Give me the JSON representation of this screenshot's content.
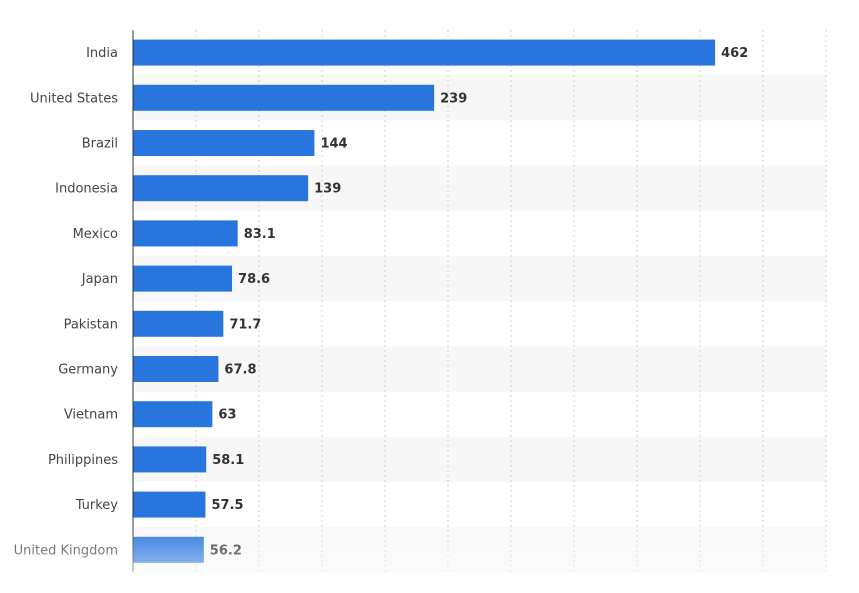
{
  "chart_data": {
    "type": "bar",
    "orientation": "horizontal",
    "categories": [
      "India",
      "United States",
      "Brazil",
      "Indonesia",
      "Mexico",
      "Japan",
      "Pakistan",
      "Germany",
      "Vietnam",
      "Philippines",
      "Turkey",
      "United Kingdom"
    ],
    "values": [
      462,
      239,
      144,
      139,
      83.1,
      78.6,
      71.7,
      67.8,
      63,
      58.1,
      57.5,
      56.2
    ],
    "value_labels": [
      "462",
      "239",
      "144",
      "139",
      "83.1",
      "78.6",
      "71.7",
      "67.8",
      "63",
      "58.1",
      "57.5",
      "56.2"
    ],
    "xlim": [
      0,
      550
    ],
    "grid": true,
    "bar_color": "#2876dd",
    "band_color": "#f7f7f7"
  }
}
